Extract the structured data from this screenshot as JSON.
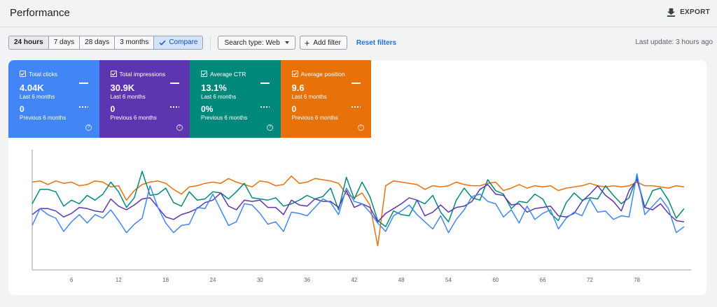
{
  "header": {
    "title": "Performance",
    "export_label": "EXPORT"
  },
  "toolbar": {
    "ranges": [
      "24 hours",
      "7 days",
      "28 days",
      "3 months"
    ],
    "compare_label": "Compare",
    "search_type_label": "Search type: Web",
    "add_filter_label": "Add filter",
    "reset_label": "Reset filters",
    "last_update": "Last update: 3 hours ago"
  },
  "metrics": [
    {
      "label": "Total clicks",
      "value": "4.04K",
      "period": "Last 6 months",
      "prev_value": "0",
      "prev_period": "Previous 6 months",
      "color": "#4285f4"
    },
    {
      "label": "Total impressions",
      "value": "30.9K",
      "period": "Last 6 months",
      "prev_value": "0",
      "prev_period": "Previous 6 months",
      "color": "#5e35b1"
    },
    {
      "label": "Average CTR",
      "value": "13.1%",
      "period": "Last 6 months",
      "prev_value": "0%",
      "prev_period": "Previous 6 months",
      "color": "#00897b"
    },
    {
      "label": "Average position",
      "value": "9.6",
      "period": "Last 6 months",
      "prev_value": "0",
      "prev_period": "Previous 6 months",
      "color": "#e8710a"
    }
  ],
  "icons": {
    "export": "download-icon",
    "compare": "check-icon",
    "search_type": "caret-down-icon",
    "add_filter": "plus-icon",
    "metric_check": "checkbox-checked-icon",
    "metric_help": "help-circle-icon"
  },
  "chart_data": {
    "type": "line",
    "x_ticks": [
      "6",
      "12",
      "18",
      "24",
      "30",
      "36",
      "42",
      "48",
      "54",
      "60",
      "66",
      "72",
      "78"
    ],
    "x_start": 1,
    "x_end": 84,
    "ylim": [
      0,
      100
    ],
    "grid": false,
    "series": [
      {
        "color": "#e8710a",
        "values": [
          73,
          74,
          71,
          74,
          72,
          73,
          70,
          71,
          74,
          73,
          69,
          70,
          58,
          66,
          71,
          73,
          74,
          72,
          67,
          63,
          69,
          70,
          72,
          73,
          72,
          76,
          73,
          71,
          69,
          74,
          73,
          70,
          71,
          78,
          72,
          73,
          76,
          75,
          74,
          72,
          63,
          60,
          64,
          54,
          20,
          70,
          74,
          73,
          72,
          71,
          67,
          70,
          69,
          70,
          73,
          71,
          70,
          70,
          72,
          73,
          66,
          68,
          71,
          68,
          70,
          69,
          70,
          66,
          68,
          69,
          70,
          72,
          70,
          69,
          70,
          69,
          70,
          73,
          70,
          70,
          69,
          68,
          70,
          69
        ]
      },
      {
        "color": "#00897b",
        "values": [
          55,
          67,
          67,
          65,
          53,
          58,
          55,
          62,
          58,
          63,
          73,
          65,
          52,
          60,
          82,
          62,
          63,
          68,
          56,
          53,
          65,
          58,
          59,
          65,
          64,
          59,
          65,
          72,
          60,
          59,
          58,
          60,
          53,
          55,
          58,
          62,
          59,
          61,
          68,
          50,
          77,
          59,
          73,
          61,
          41,
          36,
          49,
          46,
          45,
          58,
          55,
          62,
          48,
          40,
          58,
          68,
          60,
          58,
          75,
          66,
          63,
          51,
          57,
          56,
          63,
          59,
          47,
          41,
          56,
          64,
          58,
          60,
          59,
          70,
          62,
          55,
          60,
          77,
          52,
          66,
          68,
          58,
          43,
          51
        ]
      },
      {
        "color": "#5e35b1",
        "values": [
          46,
          51,
          51,
          49,
          44,
          47,
          52,
          51,
          49,
          48,
          59,
          53,
          50,
          54,
          59,
          60,
          52,
          44,
          42,
          46,
          48,
          51,
          56,
          58,
          64,
          53,
          50,
          58,
          57,
          58,
          52,
          52,
          46,
          58,
          54,
          53,
          59,
          57,
          57,
          52,
          66,
          52,
          55,
          52,
          40,
          47,
          51,
          55,
          60,
          58,
          45,
          48,
          54,
          48,
          52,
          53,
          57,
          67,
          71,
          63,
          62,
          54,
          55,
          48,
          51,
          52,
          53,
          45,
          44,
          47,
          57,
          63,
          70,
          62,
          57,
          49,
          66,
          75,
          52,
          50,
          55,
          47,
          41,
          40
        ]
      },
      {
        "color": "#4285f4",
        "values": [
          37,
          51,
          46,
          43,
          32,
          40,
          46,
          39,
          46,
          43,
          50,
          41,
          31,
          38,
          43,
          70,
          52,
          39,
          31,
          37,
          38,
          52,
          51,
          63,
          50,
          37,
          40,
          55,
          54,
          47,
          38,
          40,
          32,
          48,
          47,
          45,
          52,
          59,
          56,
          46,
          68,
          57,
          55,
          48,
          39,
          32,
          45,
          49,
          54,
          46,
          40,
          34,
          45,
          31,
          42,
          50,
          61,
          63,
          57,
          55,
          44,
          50,
          39,
          53,
          42,
          47,
          50,
          34,
          43,
          48,
          45,
          59,
          48,
          49,
          42,
          45,
          44,
          80,
          46,
          53,
          60,
          51,
          31,
          36
        ]
      }
    ]
  }
}
